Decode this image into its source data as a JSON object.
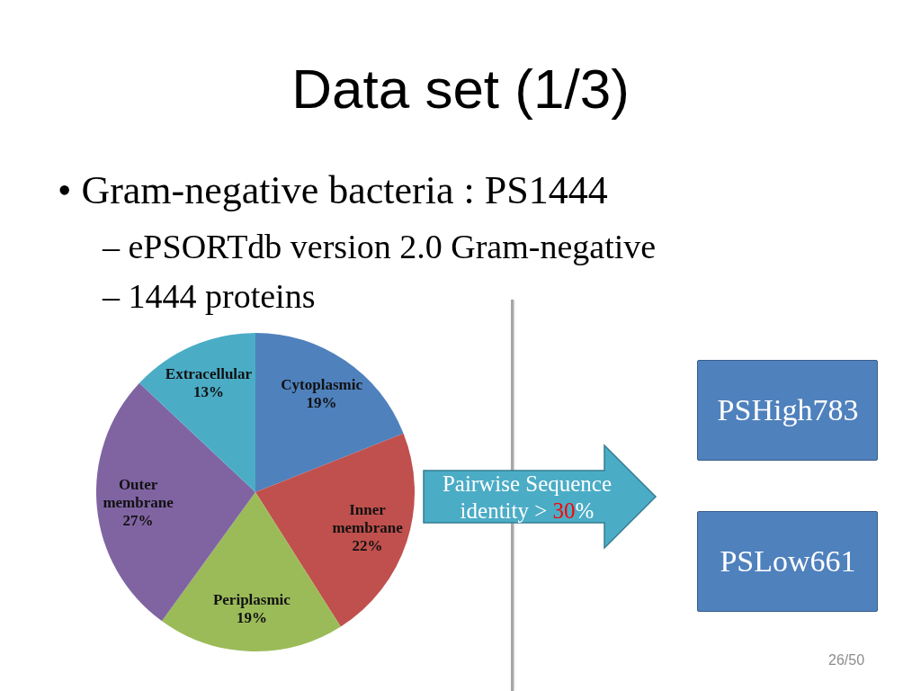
{
  "chart_data": {
    "type": "pie",
    "title": "Data set (1/3)",
    "categories": [
      "Cytoplasmic",
      "Inner membrane",
      "Periplasmic",
      "Outer membrane",
      "Extracellular"
    ],
    "values": [
      19,
      22,
      19,
      27,
      13
    ],
    "value_labels": [
      "19%",
      "22%",
      "19%",
      "27%",
      "13%"
    ],
    "colors": [
      "#4f81bd",
      "#c0504d",
      "#9bbb59",
      "#8064a2",
      "#4bacc6"
    ],
    "annotations": [
      "• Gram-negative bacteria : PS1444",
      "– ePSORTdb version 2.0 Gram-negative",
      "– 1444 proteins",
      "Pairwise Sequence identity > 30%",
      "PSHigh783",
      "PSLow661",
      "26/50"
    ]
  }
}
